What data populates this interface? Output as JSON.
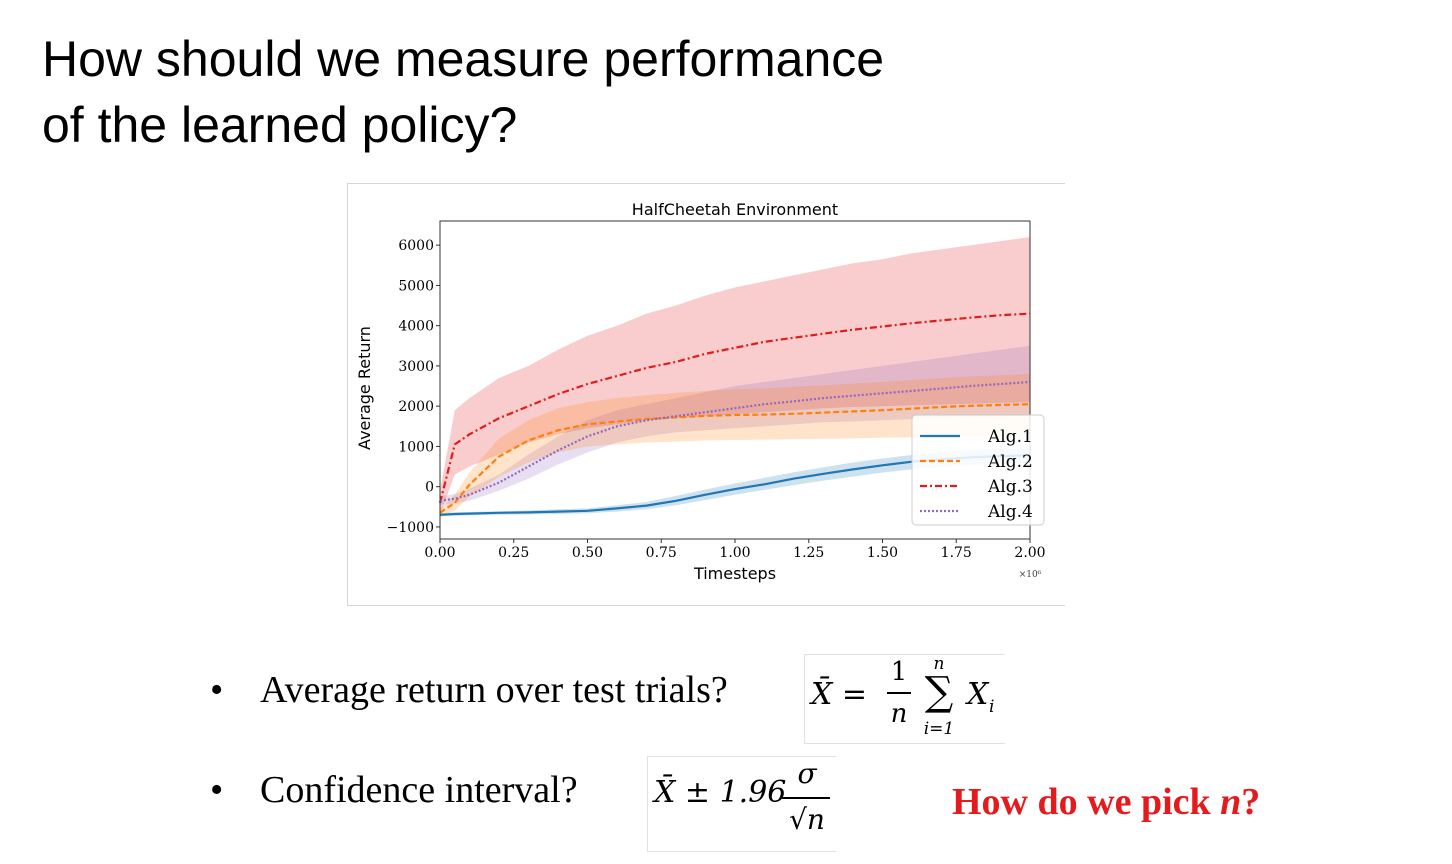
{
  "slide": {
    "title_line1": "How should we measure performance",
    "title_line2": "of the learned policy?"
  },
  "chart_data": {
    "type": "line",
    "title": "HalfCheetah Environment",
    "xlabel": "Timesteps",
    "ylabel": "Average Return",
    "x_multiplier": "×10⁶",
    "xlim": [
      0.0,
      2.0
    ],
    "ylim": [
      -1300,
      6600
    ],
    "x_ticks": [
      "0.00",
      "0.25",
      "0.50",
      "0.75",
      "1.00",
      "1.25",
      "1.50",
      "1.75",
      "2.00"
    ],
    "y_ticks": [
      "6000",
      "5000",
      "4000",
      "3000",
      "2000",
      "1000",
      "0",
      "−1000"
    ],
    "grid": false,
    "legend_position": "lower-right",
    "x": [
      0.0,
      0.05,
      0.1,
      0.2,
      0.3,
      0.4,
      0.5,
      0.6,
      0.7,
      0.8,
      0.9,
      1.0,
      1.1,
      1.2,
      1.3,
      1.4,
      1.5,
      1.6,
      1.7,
      1.8,
      1.9,
      2.0
    ],
    "series": [
      {
        "name": "Alg.1",
        "color": "#1f77b4",
        "style": "solid",
        "values": [
          -700,
          -680,
          -670,
          -650,
          -640,
          -620,
          -600,
          -540,
          -470,
          -350,
          -200,
          -60,
          60,
          200,
          320,
          430,
          530,
          620,
          680,
          730,
          760,
          780
        ],
        "band_low": [
          -740,
          -720,
          -710,
          -700,
          -690,
          -680,
          -660,
          -620,
          -560,
          -460,
          -330,
          -200,
          -80,
          40,
          150,
          250,
          350,
          430,
          490,
          540,
          570,
          590
        ],
        "band_high": [
          -660,
          -640,
          -630,
          -610,
          -590,
          -560,
          -540,
          -460,
          -380,
          -230,
          -70,
          80,
          220,
          360,
          480,
          600,
          700,
          790,
          860,
          910,
          940,
          960
        ]
      },
      {
        "name": "Alg.2",
        "color": "#ff7f0e",
        "style": "dashed",
        "values": [
          -650,
          -400,
          50,
          750,
          1150,
          1400,
          1550,
          1620,
          1680,
          1720,
          1760,
          1780,
          1790,
          1810,
          1840,
          1870,
          1900,
          1940,
          1980,
          2010,
          2030,
          2050
        ],
        "band_low": [
          -750,
          -600,
          -250,
          250,
          600,
          850,
          1000,
          1050,
          1100,
          1120,
          1150,
          1160,
          1170,
          1180,
          1190,
          1200,
          1220,
          1230,
          1250,
          1260,
          1270,
          1280
        ],
        "band_high": [
          -550,
          -200,
          350,
          1200,
          1650,
          1950,
          2100,
          2200,
          2270,
          2330,
          2380,
          2420,
          2440,
          2480,
          2520,
          2560,
          2600,
          2650,
          2700,
          2740,
          2770,
          2800
        ]
      },
      {
        "name": "Alg.3",
        "color": "#e41a1c",
        "style": "dashdot",
        "values": [
          -400,
          1050,
          1300,
          1700,
          2000,
          2300,
          2550,
          2750,
          2950,
          3100,
          3300,
          3450,
          3600,
          3700,
          3800,
          3900,
          3980,
          4060,
          4130,
          4200,
          4260,
          4300
        ],
        "band_low": [
          -700,
          300,
          500,
          800,
          1100,
          1300,
          1450,
          1550,
          1650,
          1700,
          1750,
          1800,
          1850,
          1900,
          1950,
          1980,
          2000,
          2020,
          2040,
          2060,
          2080,
          2100
        ],
        "band_high": [
          -100,
          1900,
          2200,
          2700,
          3000,
          3400,
          3750,
          4000,
          4300,
          4500,
          4750,
          4950,
          5100,
          5250,
          5400,
          5550,
          5650,
          5800,
          5900,
          6000,
          6100,
          6200
        ]
      },
      {
        "name": "Alg.4",
        "color": "#9467bd",
        "style": "dotted",
        "values": [
          -350,
          -300,
          -200,
          100,
          500,
          900,
          1250,
          1500,
          1650,
          1750,
          1850,
          1950,
          2050,
          2120,
          2200,
          2260,
          2320,
          2380,
          2440,
          2500,
          2550,
          2600
        ],
        "band_low": [
          -450,
          -420,
          -350,
          -100,
          200,
          550,
          850,
          1100,
          1250,
          1350,
          1400,
          1450,
          1500,
          1550,
          1600,
          1620,
          1650,
          1680,
          1700,
          1720,
          1740,
          1760
        ],
        "band_high": [
          -250,
          -180,
          -50,
          300,
          800,
          1250,
          1650,
          1900,
          2050,
          2200,
          2350,
          2500,
          2600,
          2700,
          2800,
          2900,
          3000,
          3100,
          3200,
          3300,
          3400,
          3500
        ]
      }
    ]
  },
  "bullets": [
    {
      "text": "Average return over test trials?"
    },
    {
      "text": "Confidence interval?"
    }
  ],
  "formula1": {
    "lhs": "X̄ =",
    "numerator": "1",
    "denominator": "n",
    "sum_top": "n",
    "sum_symbol": "∑",
    "sum_bottom": "i=1",
    "term": "X",
    "term_sub": "i"
  },
  "formula2": {
    "lhs": "X̄ ± 1.96",
    "numerator": "σ",
    "denominator": "√n"
  },
  "question": {
    "prefix": "How do we pick ",
    "variable": "n",
    "suffix": "?"
  }
}
